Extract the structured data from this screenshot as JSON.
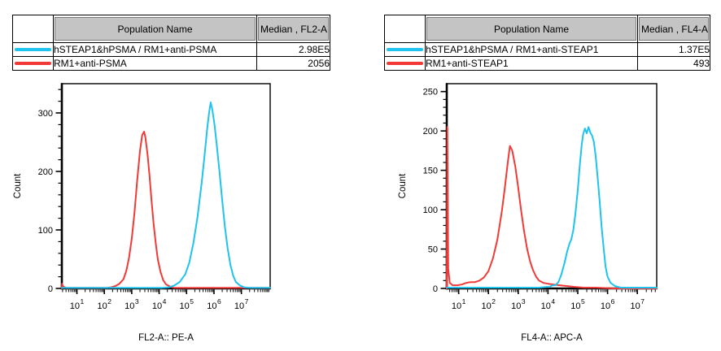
{
  "colors": {
    "cyan": "#1FC3F0",
    "red": "#F13A38",
    "header_bg": "#C4C4C4",
    "border": "#000000"
  },
  "panels": [
    {
      "table": {
        "name_header": "Population Name",
        "median_header": "Median , FL2-A",
        "rows": [
          {
            "swatch_color": "#1FC3F0",
            "name": "hSTEAP1&hPSMA / RM1+anti-PSMA",
            "median": "2.98E5"
          },
          {
            "swatch_color": "#F13A38",
            "name": "RM1+anti-PSMA",
            "median": "2056"
          }
        ]
      }
    },
    {
      "table": {
        "name_header": "Population Name",
        "median_header": "Median , FL4-A",
        "rows": [
          {
            "swatch_color": "#1FC3F0",
            "name": "hSTEAP1&hPSMA / RM1+anti-STEAP1",
            "median": "1.37E5"
          },
          {
            "swatch_color": "#F13A38",
            "name": "RM1+anti-STEAP1",
            "median": "493"
          }
        ]
      }
    }
  ],
  "chart_data": [
    {
      "type": "line",
      "variant": "flow-cytometry-histogram",
      "title": "",
      "xlabel": "FL2-A:: PE-A",
      "ylabel": "Count",
      "x_scale": "log10",
      "x_tick_base": "10",
      "x_decade_ticks": [
        1,
        2,
        3,
        4,
        5,
        6,
        7
      ],
      "xlim_log10": [
        0.45,
        8.05
      ],
      "ylim": [
        0,
        350
      ],
      "y_ticks": [
        0,
        100,
        200,
        300
      ],
      "y_minor_step": 20,
      "grid": false,
      "legend": "table-above",
      "series": [
        {
          "name": "hSTEAP1&hPSMA / RM1+anti-PSMA",
          "color": "#1FC3F0",
          "median": "2.98E5",
          "points": [
            [
              0.45,
              1
            ],
            [
              1.5,
              1
            ],
            [
              2.5,
              1
            ],
            [
              3.5,
              1
            ],
            [
              4.1,
              1
            ],
            [
              4.35,
              2
            ],
            [
              4.55,
              5
            ],
            [
              4.75,
              11
            ],
            [
              4.95,
              24
            ],
            [
              5.1,
              44
            ],
            [
              5.25,
              78
            ],
            [
              5.4,
              122
            ],
            [
              5.55,
              180
            ],
            [
              5.65,
              225
            ],
            [
              5.75,
              272
            ],
            [
              5.82,
              300
            ],
            [
              5.88,
              318
            ],
            [
              5.94,
              306
            ],
            [
              6.02,
              280
            ],
            [
              6.1,
              246
            ],
            [
              6.2,
              200
            ],
            [
              6.3,
              150
            ],
            [
              6.4,
              105
            ],
            [
              6.5,
              68
            ],
            [
              6.6,
              40
            ],
            [
              6.7,
              22
            ],
            [
              6.8,
              11
            ],
            [
              6.95,
              5
            ],
            [
              7.1,
              2
            ],
            [
              7.35,
              1
            ],
            [
              8.05,
              1
            ]
          ]
        },
        {
          "name": "RM1+anti-PSMA",
          "color": "#F13A38",
          "median": "2056",
          "points": [
            [
              0.45,
              0
            ],
            [
              0.46,
              8
            ],
            [
              0.5,
              3
            ],
            [
              0.6,
              1
            ],
            [
              1.0,
              1
            ],
            [
              1.5,
              1
            ],
            [
              1.9,
              1
            ],
            [
              2.1,
              1
            ],
            [
              2.25,
              2
            ],
            [
              2.4,
              4
            ],
            [
              2.55,
              8
            ],
            [
              2.7,
              16
            ],
            [
              2.8,
              30
            ],
            [
              2.9,
              52
            ],
            [
              3.0,
              85
            ],
            [
              3.1,
              130
            ],
            [
              3.2,
              185
            ],
            [
              3.3,
              235
            ],
            [
              3.38,
              262
            ],
            [
              3.45,
              268
            ],
            [
              3.5,
              258
            ],
            [
              3.58,
              228
            ],
            [
              3.65,
              192
            ],
            [
              3.72,
              152
            ],
            [
              3.8,
              110
            ],
            [
              3.88,
              76
            ],
            [
              3.95,
              50
            ],
            [
              4.05,
              28
            ],
            [
              4.15,
              14
            ],
            [
              4.25,
              7
            ],
            [
              4.4,
              3
            ],
            [
              4.55,
              1
            ],
            [
              4.8,
              1
            ],
            [
              5.5,
              1
            ],
            [
              6.5,
              1
            ],
            [
              7.5,
              1
            ],
            [
              8.05,
              1
            ]
          ]
        }
      ]
    },
    {
      "type": "line",
      "variant": "flow-cytometry-histogram",
      "title": "",
      "xlabel": "FL4-A:: APC-A",
      "ylabel": "Count",
      "x_scale": "log10",
      "x_tick_base": "10",
      "x_decade_ticks": [
        1,
        2,
        3,
        4,
        5,
        6,
        7
      ],
      "xlim_log10": [
        0.6,
        7.65
      ],
      "ylim": [
        0,
        260
      ],
      "y_ticks": [
        0,
        50,
        100,
        150,
        200,
        250
      ],
      "y_minor_step": 10,
      "grid": false,
      "legend": "table-above",
      "series": [
        {
          "name": "hSTEAP1&hPSMA / RM1+anti-STEAP1",
          "color": "#1FC3F0",
          "median": "1.37E5",
          "points": [
            [
              0.6,
              1
            ],
            [
              1.5,
              1
            ],
            [
              2.5,
              1
            ],
            [
              3.3,
              1
            ],
            [
              3.7,
              1
            ],
            [
              3.95,
              2
            ],
            [
              4.05,
              2
            ],
            [
              4.15,
              4
            ],
            [
              4.25,
              4
            ],
            [
              4.35,
              8
            ],
            [
              4.45,
              18
            ],
            [
              4.55,
              32
            ],
            [
              4.65,
              48
            ],
            [
              4.72,
              57
            ],
            [
              4.78,
              62
            ],
            [
              4.85,
              74
            ],
            [
              4.92,
              95
            ],
            [
              5.0,
              125
            ],
            [
              5.07,
              158
            ],
            [
              5.13,
              182
            ],
            [
              5.18,
              196
            ],
            [
              5.24,
              203
            ],
            [
              5.3,
              197
            ],
            [
              5.36,
              205
            ],
            [
              5.42,
              198
            ],
            [
              5.48,
              194
            ],
            [
              5.54,
              186
            ],
            [
              5.6,
              168
            ],
            [
              5.67,
              140
            ],
            [
              5.74,
              108
            ],
            [
              5.8,
              78
            ],
            [
              5.87,
              50
            ],
            [
              5.93,
              28
            ],
            [
              6.0,
              15
            ],
            [
              6.1,
              7
            ],
            [
              6.25,
              3
            ],
            [
              6.45,
              1
            ],
            [
              6.8,
              1
            ],
            [
              7.65,
              1
            ]
          ]
        },
        {
          "name": "RM1+anti-STEAP1",
          "color": "#F13A38",
          "median": "493",
          "points": [
            [
              0.6,
              0
            ],
            [
              0.62,
              205
            ],
            [
              0.65,
              25
            ],
            [
              0.7,
              7
            ],
            [
              0.8,
              4
            ],
            [
              0.95,
              4
            ],
            [
              1.1,
              5
            ],
            [
              1.25,
              7
            ],
            [
              1.4,
              8
            ],
            [
              1.55,
              8
            ],
            [
              1.7,
              10
            ],
            [
              1.85,
              14
            ],
            [
              2.0,
              22
            ],
            [
              2.15,
              38
            ],
            [
              2.3,
              62
            ],
            [
              2.45,
              98
            ],
            [
              2.55,
              128
            ],
            [
              2.65,
              160
            ],
            [
              2.72,
              181
            ],
            [
              2.8,
              175
            ],
            [
              2.9,
              155
            ],
            [
              3.0,
              128
            ],
            [
              3.1,
              98
            ],
            [
              3.2,
              72
            ],
            [
              3.3,
              50
            ],
            [
              3.4,
              34
            ],
            [
              3.5,
              23
            ],
            [
              3.6,
              15
            ],
            [
              3.7,
              10
            ],
            [
              3.85,
              7
            ],
            [
              4.0,
              6
            ],
            [
              4.2,
              5
            ],
            [
              4.4,
              4
            ],
            [
              4.65,
              3
            ],
            [
              4.9,
              2
            ],
            [
              5.2,
              1
            ],
            [
              5.6,
              1
            ],
            [
              6.2,
              0
            ],
            [
              7.65,
              0
            ]
          ]
        }
      ]
    }
  ]
}
